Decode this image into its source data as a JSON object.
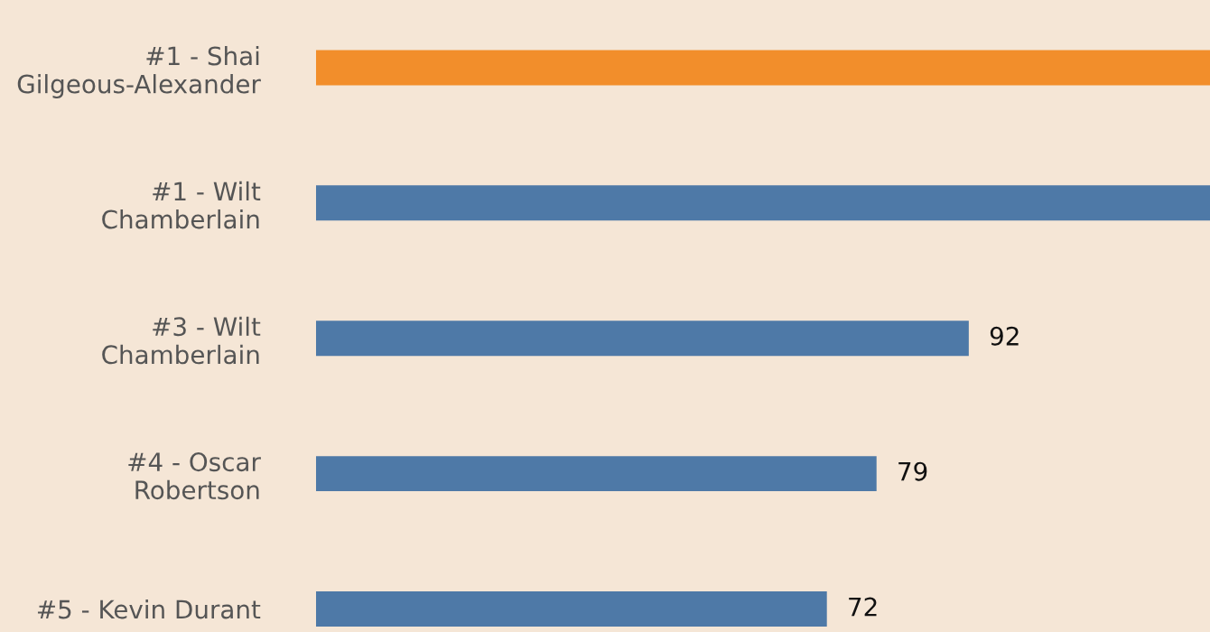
{
  "chart_data": {
    "type": "bar",
    "orientation": "horizontal",
    "categories": [
      "#1 - Shai Gilgeous-Alexander",
      "#1 - Wilt Chamberlain",
      "#3 - Wilt Chamberlain",
      "#4 - Oscar Robertson",
      "#5 - Kevin Durant"
    ],
    "values": [
      126,
      126,
      92,
      79,
      72
    ],
    "colors": [
      "#f28e2b",
      "#4e79a7",
      "#4e79a7",
      "#4e79a7",
      "#4e79a7"
    ],
    "value_labels": [
      null,
      null,
      "92",
      "79",
      "72"
    ],
    "xlim": [
      0,
      126
    ],
    "tick_labels": "y",
    "grid": false
  }
}
